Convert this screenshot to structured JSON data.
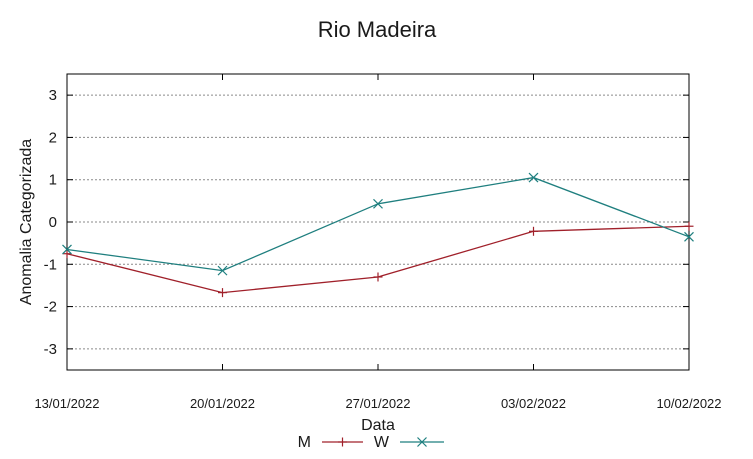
{
  "chart_data": {
    "type": "line",
    "title": "Rio Madeira",
    "xlabel": "Data",
    "ylabel": "Anomalia Categorizada",
    "categories": [
      "13/01/2022",
      "20/01/2022",
      "27/01/2022",
      "03/02/2022",
      "10/02/2022"
    ],
    "ylim": [
      -3.5,
      3.5
    ],
    "yticks": [
      "3",
      "2",
      "1",
      "0",
      "-1",
      "-2",
      "-3"
    ],
    "grid": true,
    "legend_position": "bottom",
    "series": [
      {
        "name": "M",
        "color": "#a0202a",
        "marker": "plus",
        "x": [
          0,
          1,
          2,
          3,
          4
        ],
        "values": [
          -0.75,
          -1.67,
          -1.3,
          -0.22,
          -0.1
        ]
      },
      {
        "name": "W",
        "color": "#1f7f7f",
        "marker": "cross",
        "x": [
          0,
          1,
          2,
          3,
          4
        ],
        "values": [
          -0.65,
          -1.15,
          0.43,
          1.05,
          -0.35
        ]
      }
    ]
  }
}
